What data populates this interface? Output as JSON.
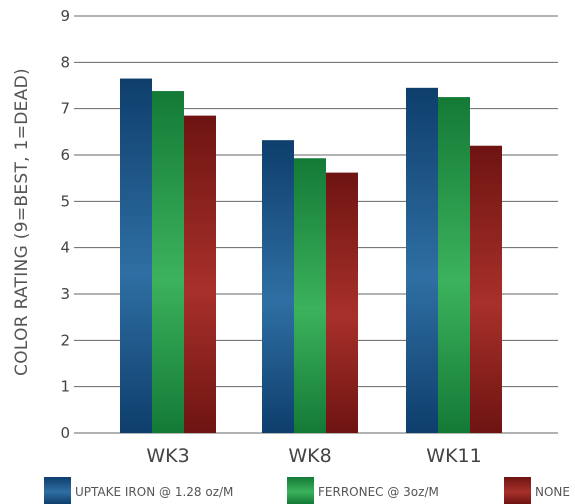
{
  "chart_data": {
    "type": "bar",
    "title": "",
    "ylabel": "COLOR RATING (9=BEST, 1=DEAD)",
    "xlabel": "",
    "ylim": [
      0,
      9
    ],
    "yticks": [
      0,
      1,
      2,
      3,
      4,
      5,
      6,
      7,
      8,
      9
    ],
    "grid": true,
    "legend_position": "bottom",
    "categories": [
      "WK3",
      "WK8",
      "WK11"
    ],
    "series": [
      {
        "name": "UPTAKE IRON @ 1.28 oz/M",
        "values": [
          7.65,
          6.32,
          7.45
        ],
        "color": "#1f5a8e"
      },
      {
        "name": "FERRONEC @ 3oz/M",
        "values": [
          7.38,
          5.93,
          7.25
        ],
        "color": "#1e9a4c"
      },
      {
        "name": "NONE",
        "values": [
          6.85,
          5.62,
          6.2
        ],
        "color": "#8e2320"
      }
    ]
  }
}
